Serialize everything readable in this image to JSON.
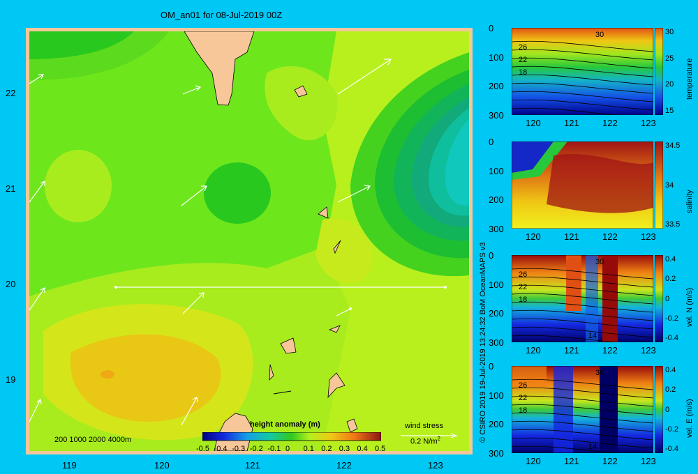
{
  "title": "OM_an01 for 08-Jul-2019 00Z",
  "credit": "© CSIRO 2019   19-Jul-2019 13:24:32 BoM OceanMAPS v3",
  "map": {
    "xticks": [
      "119",
      "120",
      "121",
      "122",
      "123"
    ],
    "yticks": [
      "22",
      "21",
      "20",
      "19"
    ],
    "depth_legend": "200  1000  2000  4000m",
    "colorbar_title": "height anomaly (m)",
    "colorbar_ticks": [
      "-0.5",
      "-0.4",
      "-0.3",
      "-0.2",
      "-0.1",
      "0",
      "0.1",
      "0.2",
      "0.3",
      "0.4",
      "0.5"
    ],
    "wind_label": "wind stress",
    "wind_scale": "0.2 N/m",
    "wind_scale_sup": "2"
  },
  "panels": [
    {
      "label": "temperature",
      "yticks": [
        "0",
        "100",
        "200",
        "300"
      ],
      "xticks": [
        "120",
        "121",
        "122",
        "123"
      ],
      "cticks": [
        "30",
        "25",
        "20",
        "15"
      ],
      "contour_labels": [
        "26",
        "22",
        "18",
        "30"
      ]
    },
    {
      "label": "salinity",
      "yticks": [
        "0",
        "100",
        "200",
        "300"
      ],
      "xticks": [
        "120",
        "121",
        "122",
        "123"
      ],
      "cticks": [
        "34.5",
        "34",
        "33.5"
      ]
    },
    {
      "label": "vel. N  (m/s)",
      "yticks": [
        "0",
        "100",
        "200",
        "300"
      ],
      "xticks": [
        "120",
        "121",
        "122",
        "123"
      ],
      "cticks": [
        "0.4",
        "0.2",
        "0",
        "-0.2",
        "-0.4"
      ],
      "contour_labels": [
        "26",
        "22",
        "18",
        "30",
        "14"
      ]
    },
    {
      "label": "vel. E  (m/s)",
      "yticks": [
        "0",
        "100",
        "200",
        "300"
      ],
      "xticks": [
        "120",
        "121",
        "122",
        "123"
      ],
      "cticks": [
        "0.4",
        "0.2",
        "0",
        "-0.2",
        "-0.4"
      ],
      "contour_labels": [
        "26",
        "22",
        "18",
        "30",
        "14"
      ]
    }
  ],
  "chart_data": [
    {
      "type": "heatmap",
      "title": "OM_an01 for 08-Jul-2019 00Z",
      "colorbar_label": "height anomaly (m)",
      "zlim": [
        -0.5,
        0.5
      ],
      "xlim": [
        118.5,
        123.5
      ],
      "ylim": [
        18.3,
        22.65
      ],
      "x_ticks": [
        119,
        120,
        121,
        122,
        123
      ],
      "y_ticks": [
        22,
        21,
        20,
        19
      ],
      "section_line": {
        "lat": 20,
        "lon": [
          119.5,
          123.2
        ]
      }
    },
    {
      "type": "heatmap",
      "colorbar_label": "temperature",
      "zlim": [
        15,
        31
      ],
      "xlim": [
        119.5,
        123.2
      ],
      "ylim": [
        300,
        0
      ]
    },
    {
      "type": "heatmap",
      "colorbar_label": "salinity",
      "zlim": [
        33.5,
        34.9
      ],
      "xlim": [
        119.5,
        123.2
      ],
      "ylim": [
        300,
        0
      ]
    },
    {
      "type": "heatmap",
      "colorbar_label": "vel. N  (m/s)",
      "zlim": [
        -0.45,
        0.45
      ],
      "xlim": [
        119.5,
        123.2
      ],
      "ylim": [
        300,
        0
      ]
    },
    {
      "type": "heatmap",
      "colorbar_label": "vel. E  (m/s)",
      "zlim": [
        -0.45,
        0.45
      ],
      "xlim": [
        119.5,
        123.2
      ],
      "ylim": [
        300,
        0
      ]
    }
  ]
}
